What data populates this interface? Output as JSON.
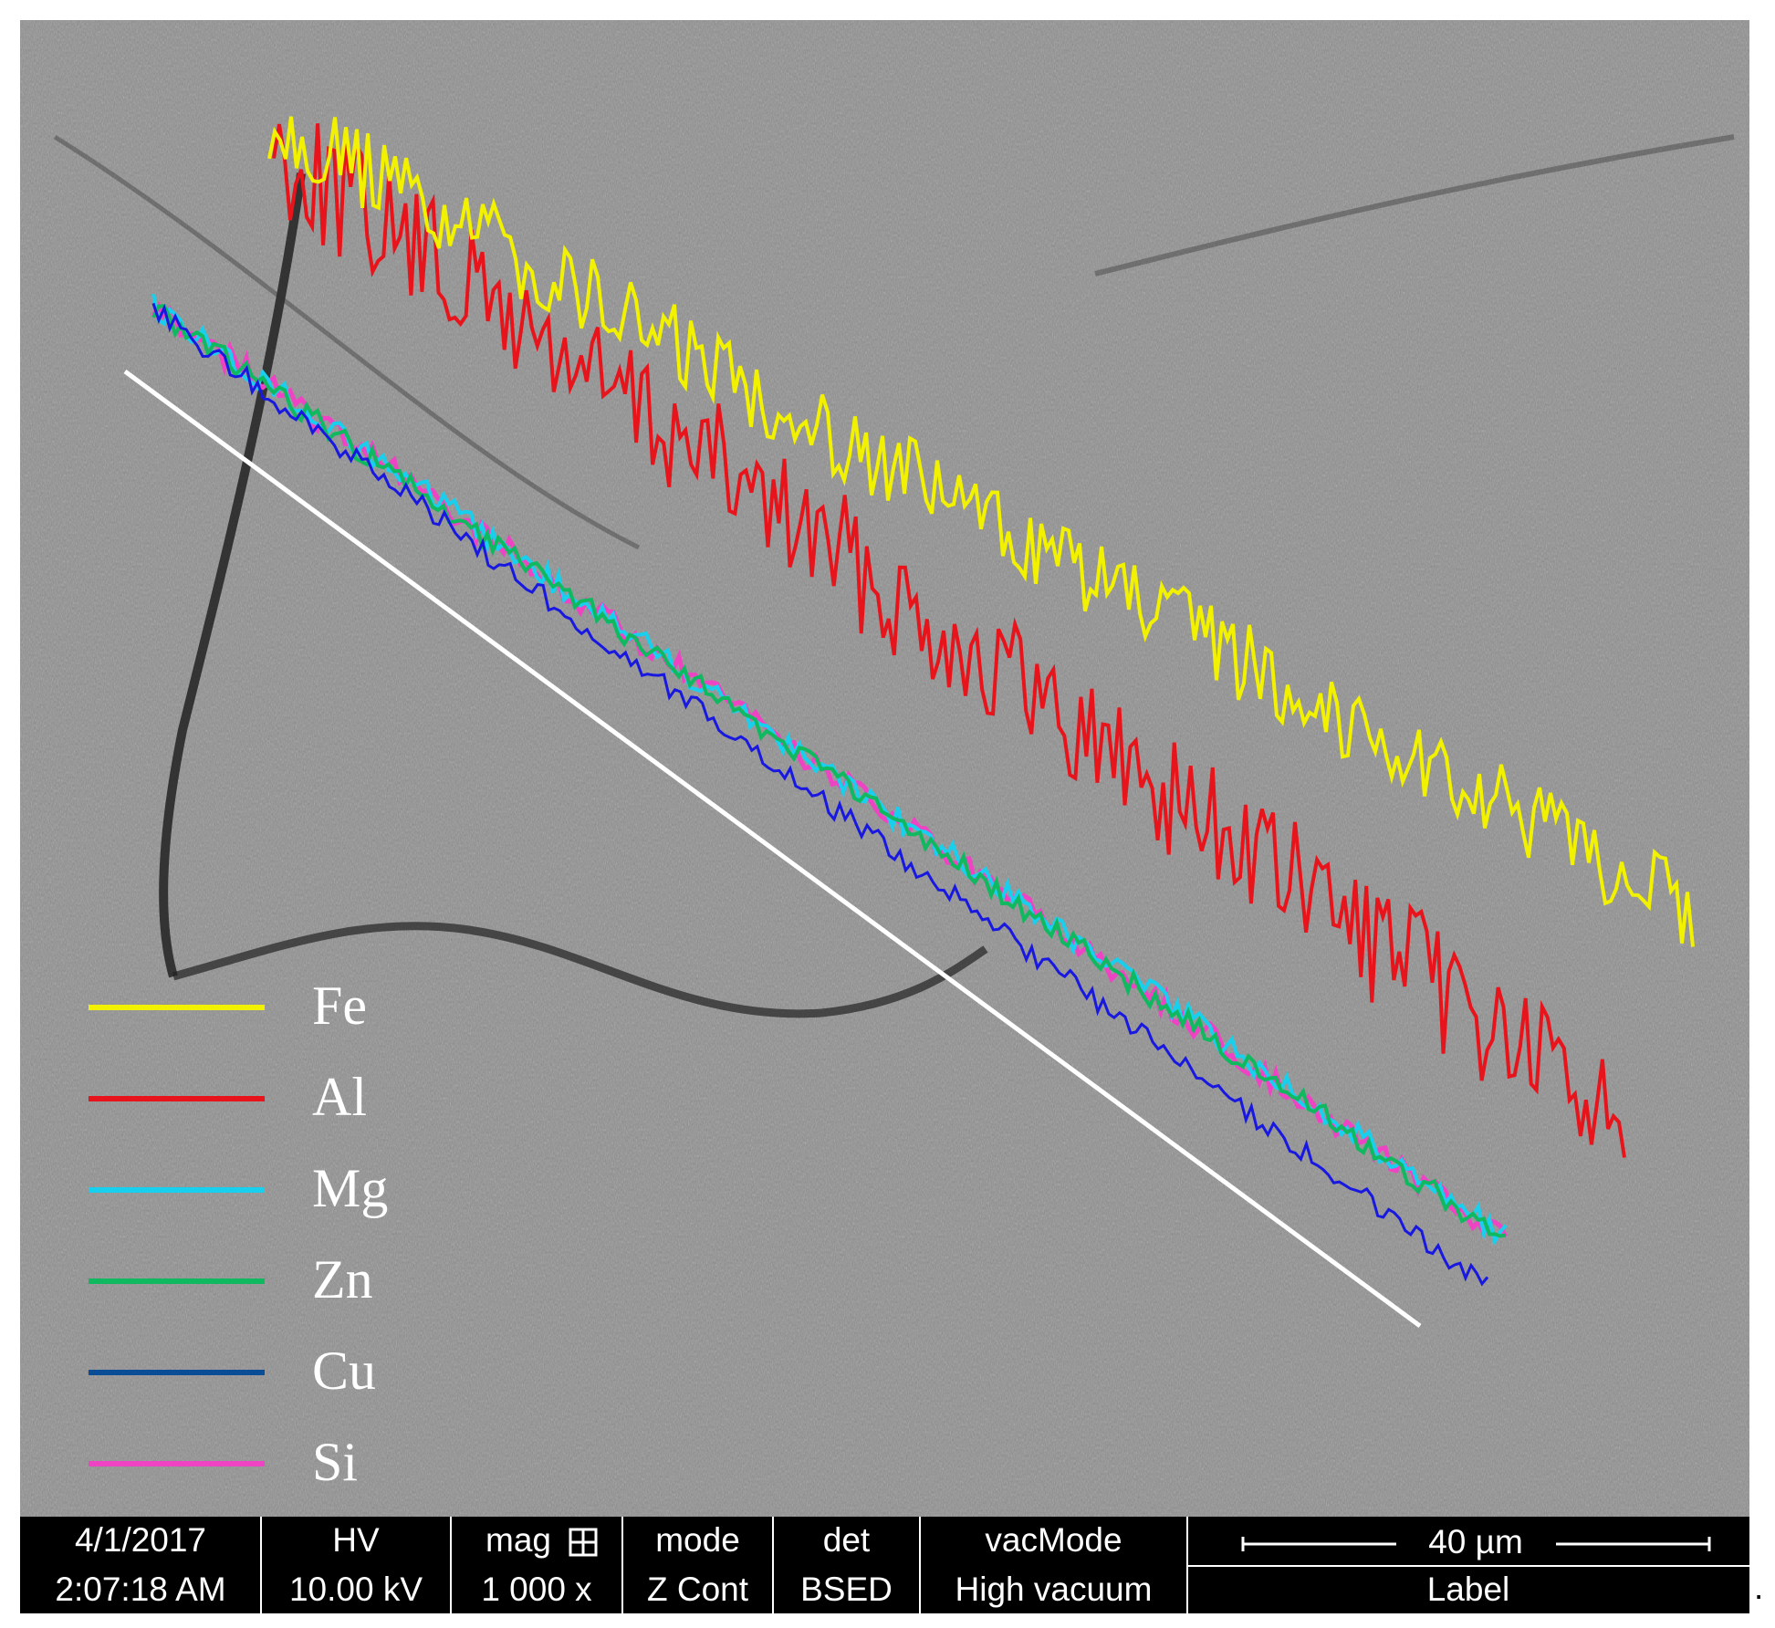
{
  "legend": [
    {
      "label": "Fe",
      "color": "#f2f200"
    },
    {
      "label": "Al",
      "color": "#e8141c"
    },
    {
      "label": "Mg",
      "color": "#18d0ee"
    },
    {
      "label": "Zn",
      "color": "#10b860"
    },
    {
      "label": "Cu",
      "color": "#0a4c96"
    },
    {
      "label": "Si",
      "color": "#ee44c4"
    }
  ],
  "info_bar": {
    "cells": [
      {
        "header": "4/1/2017",
        "value": "2:07:18 AM"
      },
      {
        "header": "HV",
        "value": "10.00 kV"
      },
      {
        "header": "mag",
        "value": "1 000 x"
      },
      {
        "header": "mode",
        "value": "Z Cont"
      },
      {
        "header": "det",
        "value": "BSED"
      },
      {
        "header": "vacMode",
        "value": "High vacuum"
      }
    ],
    "scale_bar": "40 µm",
    "label": "Label"
  },
  "trailing_mark": "."
}
